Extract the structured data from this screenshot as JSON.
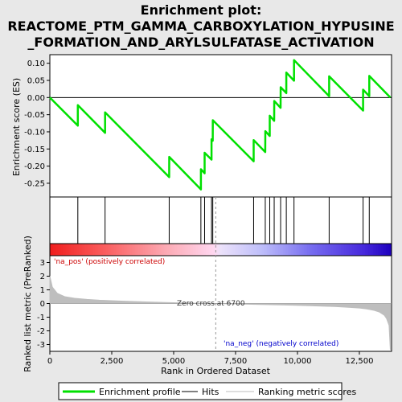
{
  "chart_data": {
    "type": "line",
    "title_line1": "Enrichment plot:",
    "title_line2": "REACTOME_PTM_GAMMA_CARBOXYLATION_HYPUSINE",
    "title_line3": "_FORMATION_AND_ARYLSULFATASE_ACTIVATION",
    "xlabel": "Rank in Ordered Dataset",
    "ylabel_top": "Enrichment score (ES)",
    "ylabel_bottom": "Ranked list metric (PreRanked)",
    "xlim": [
      0,
      13800
    ],
    "es_ylim": [
      -0.29,
      0.125
    ],
    "metric_ylim": [
      -3.5,
      3.5
    ],
    "x_ticks": [
      0,
      2500,
      5000,
      7500,
      10000,
      12500
    ],
    "x_tick_labels": [
      "0",
      "2,500",
      "5,000",
      "7,500",
      "10,000",
      "12,500"
    ],
    "es_ticks": [
      0.1,
      0.05,
      0.0,
      -0.05,
      -0.1,
      -0.15,
      -0.2,
      -0.25
    ],
    "es_tick_labels": [
      "0.10",
      "0.05",
      "0.00",
      "-0.05",
      "-0.10",
      "-0.15",
      "-0.20",
      "-0.25"
    ],
    "metric_ticks": [
      3,
      2,
      1,
      0,
      -1,
      -2,
      -3
    ],
    "metric_tick_labels": [
      "3",
      "2",
      "1",
      "0",
      "-1",
      "-2",
      "-3"
    ],
    "hits": [
      1130,
      2230,
      4820,
      6100,
      6250,
      6530,
      6580,
      8230,
      8700,
      8880,
      9060,
      9320,
      9550,
      9860,
      11280,
      12650,
      12900
    ],
    "es_profile": {
      "x": [
        0,
        1130,
        1131,
        2230,
        2231,
        4820,
        4821,
        6100,
        6101,
        6250,
        6251,
        6530,
        6531,
        6580,
        6581,
        8230,
        8231,
        8700,
        8701,
        8880,
        8881,
        9060,
        9061,
        9320,
        9321,
        9550,
        9551,
        9860,
        9861,
        11280,
        11281,
        12650,
        12651,
        12900,
        12901,
        13750
      ],
      "y": [
        0.0,
        -0.082,
        -0.022,
        -0.103,
        -0.043,
        -0.232,
        -0.173,
        -0.268,
        -0.209,
        -0.221,
        -0.161,
        -0.181,
        -0.122,
        -0.126,
        -0.066,
        -0.186,
        -0.124,
        -0.159,
        -0.098,
        -0.112,
        -0.053,
        -0.068,
        -0.01,
        -0.03,
        0.03,
        0.013,
        0.073,
        0.049,
        0.109,
        0.004,
        0.062,
        -0.038,
        0.023,
        0.004,
        0.063,
        0.0
      ]
    },
    "metric_curve": {
      "x": [
        0,
        100,
        300,
        600,
        1000,
        1500,
        2000,
        3000,
        4000,
        5000,
        6000,
        6700,
        7500,
        8500,
        9500,
        10500,
        11500,
        12000,
        12500,
        12800,
        13100,
        13300,
        13500,
        13600,
        13700,
        13750
      ],
      "y": [
        2.0,
        1.2,
        0.75,
        0.5,
        0.38,
        0.3,
        0.24,
        0.17,
        0.11,
        0.06,
        0.02,
        0.0,
        -0.03,
        -0.07,
        -0.11,
        -0.16,
        -0.22,
        -0.27,
        -0.33,
        -0.4,
        -0.5,
        -0.62,
        -0.85,
        -1.1,
        -1.6,
        -3.4
      ]
    },
    "zero_cross_label": "Zero cross at 6700",
    "zero_cross_x": 6700,
    "pos_label": "'na_pos' (positively correlated)",
    "neg_label": "'na_neg' (negatively correlated)",
    "colors": {
      "es_line": "#00e000",
      "hit_line": "#000000",
      "metric_fill": "#bebebe",
      "pos_text": "#cc0000",
      "neg_text": "#0000cc",
      "background": "#e8e8e8"
    },
    "legend": [
      {
        "label": "Enrichment profile",
        "color": "#00e000",
        "kind": "thick"
      },
      {
        "label": "Hits",
        "color": "#000000",
        "kind": "thin"
      },
      {
        "label": "Ranking metric scores",
        "color": "#bebebe",
        "kind": "thin"
      }
    ]
  }
}
